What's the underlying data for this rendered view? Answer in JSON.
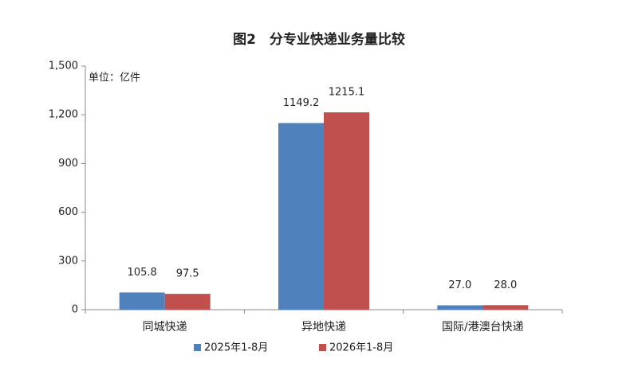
{
  "chart_data": {
    "type": "bar",
    "title": "图2　分专业快递业务量比较",
    "unit_label": "单位：亿件",
    "categories": [
      "同城快递",
      "异地快递",
      "国际/港澳台快递"
    ],
    "series": [
      {
        "name": "2025年1-8月",
        "color": "#4f81bd",
        "values": [
          105.8,
          1149.2,
          27
        ],
        "value_labels": [
          "105.8",
          "1149.2",
          "27.0"
        ]
      },
      {
        "name": "2026年1-8月",
        "color": "#c0504d",
        "values": [
          97.5,
          1215.1,
          28
        ],
        "value_labels": [
          "97.5",
          "1215.1",
          "28.0"
        ]
      }
    ],
    "ylim": [
      0,
      1500
    ],
    "yticks": [
      0,
      300,
      600,
      900,
      {
        "value": 1200,
        "label": "1,200"
      },
      {
        "value": 1500,
        "label": "1,500"
      }
    ],
    "grid": false,
    "legend": "bottom"
  }
}
